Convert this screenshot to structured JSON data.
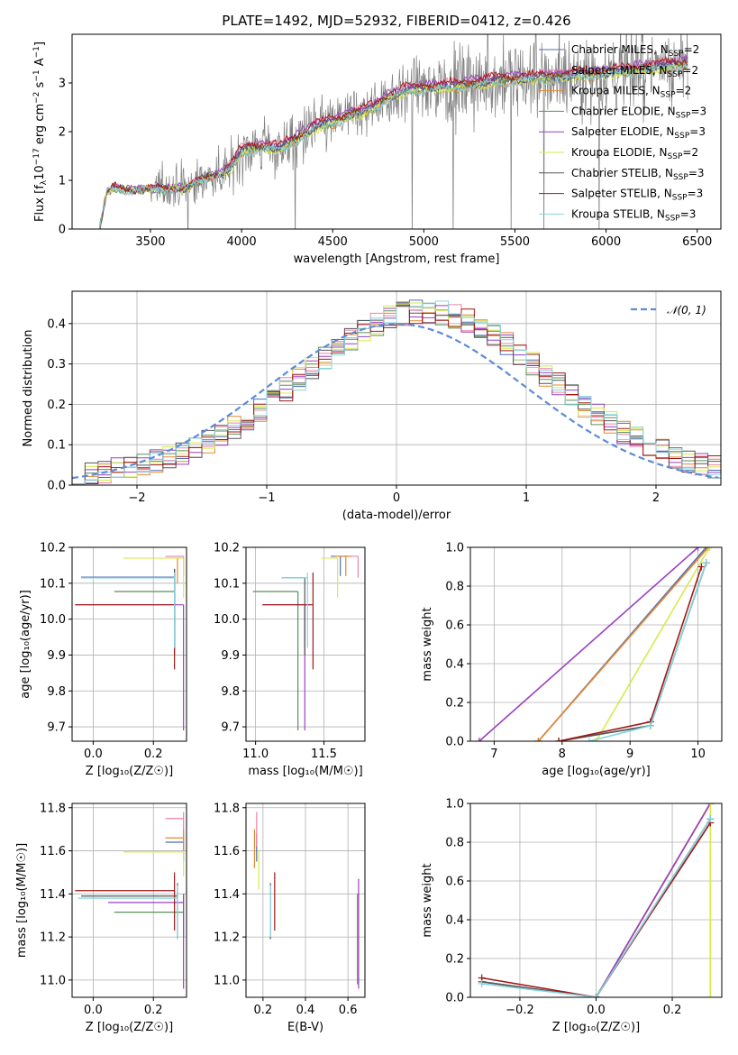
{
  "figure": {
    "title": "PLATE=1492, MJD=52932, FIBERID=0412, z=0.426"
  },
  "models": [
    {
      "name": "Chabrier MILES, N",
      "nssp": "=2",
      "color": "#4f6db3"
    },
    {
      "name": "Salpeter MILES, N",
      "nssp": "=2",
      "color": "#ee82a8"
    },
    {
      "name": "Kroupa MILES, N",
      "nssp": "=2",
      "color": "#e08a2e"
    },
    {
      "name": "Chabrier ELODIE, N",
      "nssp": "=3",
      "color": "#5a8f5a"
    },
    {
      "name": "Salpeter ELODIE, N",
      "nssp": "=3",
      "color": "#9b3fbf"
    },
    {
      "name": "Kroupa ELODIE, N",
      "nssp": "=2",
      "color": "#d7ea4a"
    },
    {
      "name": "Chabrier STELIB, N",
      "nssp": "=3",
      "color": "#555555"
    },
    {
      "name": "Salpeter STELIB, N",
      "nssp": "=3",
      "color": "#a01818"
    },
    {
      "name": "Kroupa STELIB, N",
      "nssp": "=3",
      "color": "#86d4e0"
    }
  ],
  "chart_data": [
    {
      "id": "spectrum",
      "type": "line",
      "xlabel": "wavelength [Angstrom, rest frame]",
      "ylabel_pre": "Flux [f",
      "ylabel_sub": "λ",
      "ylabel_post": "10",
      "ylabel_exp": "−17",
      "ylabel_end": " erg cm",
      "ylabel_exp2": "−2",
      "ylabel_end2": " s",
      "ylabel_exp3": "−1",
      "ylabel_end3": " A",
      "ylabel_exp4": "−1",
      "ylabel_close": "]",
      "xlim": [
        3070,
        6630
      ],
      "ylim": [
        0,
        4.0
      ],
      "xticks": [
        3500,
        4000,
        4500,
        5000,
        5500,
        6000,
        6500
      ],
      "yticks": [
        0,
        1,
        2,
        3
      ],
      "data_color": "#808080",
      "model_continuum": {
        "x": [
          3220,
          3260,
          3300,
          3400,
          3500,
          3700,
          3800,
          3900,
          3950,
          4000,
          4100,
          4200,
          4300,
          4400,
          4500,
          4600,
          4700,
          4800,
          4900,
          5000,
          5200,
          5400,
          5600,
          5800,
          6000,
          6200,
          6450
        ],
        "y": [
          0.0,
          0.75,
          0.85,
          0.8,
          0.82,
          0.85,
          1.05,
          1.15,
          1.3,
          1.6,
          1.7,
          1.65,
          1.85,
          2.1,
          2.2,
          2.35,
          2.45,
          2.7,
          2.85,
          2.9,
          2.95,
          3.05,
          3.1,
          3.15,
          3.2,
          3.3,
          3.4
        ]
      }
    },
    {
      "id": "residuals",
      "type": "step",
      "xlabel": "(data-model)/error",
      "ylabel": "Normed distribution",
      "xlim": [
        -2.5,
        2.5
      ],
      "ylim": [
        0,
        0.48
      ],
      "xticks": [
        -2,
        -1,
        0,
        1,
        2
      ],
      "xtick_labels": [
        "−2",
        "−1",
        "0",
        "1",
        "2"
      ],
      "yticks": [
        0.0,
        0.1,
        0.2,
        0.3,
        0.4
      ],
      "ytick_labels": [
        "0.0",
        "0.1",
        "0.2",
        "0.3",
        "0.4"
      ],
      "legend": "𝒩(0, 1)",
      "normal_color": "#5b8bd9"
    },
    {
      "id": "age_vs_Z",
      "type": "errorbar",
      "xlabel": "Z [log₁₀(Z/Z☉)]",
      "ylabel": "age  [log₁₀(age/yr)]",
      "xlim": [
        -0.07,
        0.31
      ],
      "ylim": [
        9.66,
        10.2
      ],
      "xticks": [
        0.0,
        0.2
      ],
      "xtick_labels": [
        "0.0",
        "0.2"
      ],
      "yticks": [
        9.7,
        9.8,
        9.9,
        10.0,
        10.1,
        10.2
      ],
      "ytick_labels": [
        "9.7",
        "9.8",
        "9.9",
        "10.0",
        "10.1",
        "10.2"
      ],
      "points": [
        {
          "m": 0,
          "x": 0.27,
          "xlo": -0.04,
          "xhi": 0.27,
          "y": 10.117,
          "ylo": 10.117,
          "yhi": 10.117
        },
        {
          "m": 1,
          "x": 0.3,
          "xlo": 0.24,
          "xhi": 0.3,
          "y": 10.175,
          "ylo": 10.12,
          "yhi": 10.175
        },
        {
          "m": 2,
          "x": 0.28,
          "xlo": 0.24,
          "xhi": 0.3,
          "y": 10.17,
          "ylo": 10.1,
          "yhi": 10.17
        },
        {
          "m": 3,
          "x": 0.27,
          "xlo": 0.07,
          "xhi": 0.27,
          "y": 10.077,
          "ylo": 9.9,
          "yhi": 10.14
        },
        {
          "m": 4,
          "x": 0.3,
          "xlo": -0.06,
          "xhi": 0.3,
          "y": 10.04,
          "ylo": 9.69,
          "yhi": 10.04
        },
        {
          "m": 5,
          "x": 0.3,
          "xlo": 0.1,
          "xhi": 0.3,
          "y": 10.17,
          "ylo": 10.06,
          "yhi": 10.17
        },
        {
          "m": 6,
          "x": 0.27,
          "xlo": -0.04,
          "xhi": 0.27,
          "y": 10.115,
          "ylo": 9.92,
          "yhi": 10.14
        },
        {
          "m": 7,
          "x": 0.27,
          "xlo": -0.06,
          "xhi": 0.27,
          "y": 10.04,
          "ylo": 9.86,
          "yhi": 10.13
        },
        {
          "m": 8,
          "x": 0.27,
          "xlo": -0.04,
          "xhi": 0.27,
          "y": 10.115,
          "ylo": 9.92,
          "yhi": 10.13
        }
      ]
    },
    {
      "id": "age_vs_mass",
      "type": "errorbar",
      "xlabel": "mass [log₁₀(M/M☉)]",
      "ylabel": "",
      "xlim": [
        10.93,
        11.8
      ],
      "ylim": [
        9.66,
        10.2
      ],
      "xticks": [
        11.0,
        11.5
      ],
      "xtick_labels": [
        "11.0",
        "11.5"
      ],
      "yticks": [
        9.7,
        9.8,
        9.9,
        10.0,
        10.1,
        10.2
      ],
      "ytick_labels": [
        "9.7",
        "9.8",
        "9.9",
        "10.0",
        "10.1",
        "10.2"
      ],
      "points": [
        {
          "m": 0,
          "x": 11.62,
          "xlo": 11.55,
          "xhi": 11.68,
          "y": 10.175,
          "ylo": 10.12,
          "yhi": 10.175
        },
        {
          "m": 1,
          "x": 11.75,
          "xlo": 11.62,
          "xhi": 11.75,
          "y": 10.175,
          "ylo": 10.115,
          "yhi": 10.175
        },
        {
          "m": 2,
          "x": 11.66,
          "xlo": 11.58,
          "xhi": 11.7,
          "y": 10.175,
          "ylo": 10.12,
          "yhi": 10.175
        },
        {
          "m": 3,
          "x": 11.31,
          "xlo": 10.98,
          "xhi": 11.31,
          "y": 10.077,
          "ylo": 9.69,
          "yhi": 10.077
        },
        {
          "m": 4,
          "x": 11.36,
          "xlo": 11.05,
          "xhi": 11.4,
          "y": 10.04,
          "ylo": 9.69,
          "yhi": 10.04
        },
        {
          "m": 5,
          "x": 11.6,
          "xlo": 11.48,
          "xhi": 11.6,
          "y": 10.17,
          "ylo": 10.06,
          "yhi": 10.17
        },
        {
          "m": 6,
          "x": 11.36,
          "xlo": 11.19,
          "xhi": 11.36,
          "y": 10.115,
          "ylo": 9.9,
          "yhi": 10.115
        },
        {
          "m": 7,
          "x": 11.42,
          "xlo": 11.05,
          "xhi": 11.42,
          "y": 10.04,
          "ylo": 9.86,
          "yhi": 10.13
        },
        {
          "m": 8,
          "x": 11.38,
          "xlo": 11.19,
          "xhi": 11.38,
          "y": 10.115,
          "ylo": 9.92,
          "yhi": 10.13
        }
      ]
    },
    {
      "id": "mw_vs_age",
      "type": "line",
      "xlabel": "age  [log₁₀(age/yr)]",
      "ylabel": "mass weight",
      "xlim": [
        6.65,
        10.35
      ],
      "ylim": [
        0.0,
        1.0
      ],
      "xticks": [
        7,
        8,
        9,
        10
      ],
      "xtick_labels": [
        "7",
        "8",
        "9",
        "10"
      ],
      "yticks": [
        0.0,
        0.2,
        0.4,
        0.6,
        0.8,
        1.0
      ],
      "ytick_labels": [
        "0.0",
        "0.2",
        "0.4",
        "0.6",
        "0.8",
        "1.0"
      ],
      "series": [
        {
          "m": 0,
          "x": [
            7.65,
            10.12
          ],
          "y": [
            0.0,
            1.0
          ]
        },
        {
          "m": 1,
          "x": [
            7.65,
            10.15
          ],
          "y": [
            0.0,
            1.0
          ]
        },
        {
          "m": 2,
          "x": [
            7.65,
            10.15
          ],
          "y": [
            0.0,
            1.0
          ]
        },
        {
          "m": 3,
          "x": [
            7.95,
            9.3,
            10.12
          ],
          "y": [
            0.0,
            0.08,
            0.92
          ]
        },
        {
          "m": 4,
          "x": [
            6.78,
            10.0
          ],
          "y": [
            0.0,
            1.0
          ]
        },
        {
          "m": 5,
          "x": [
            8.5,
            10.17
          ],
          "y": [
            0.0,
            1.0
          ]
        },
        {
          "m": 6,
          "x": [
            7.95,
            9.3,
            10.12
          ],
          "y": [
            0.0,
            0.08,
            0.92
          ]
        },
        {
          "m": 7,
          "x": [
            7.95,
            9.3,
            10.05
          ],
          "y": [
            0.0,
            0.1,
            0.9
          ]
        },
        {
          "m": 8,
          "x": [
            8.4,
            9.3,
            10.12
          ],
          "y": [
            0.0,
            0.08,
            0.92
          ]
        }
      ]
    },
    {
      "id": "mass_vs_Z",
      "type": "errorbar",
      "xlabel": "Z [log₁₀(Z/Z☉)]",
      "ylabel": "mass [log₁₀(M/M☉)]",
      "xlim": [
        -0.07,
        0.31
      ],
      "ylim": [
        10.92,
        11.82
      ],
      "xticks": [
        0.0,
        0.2
      ],
      "xtick_labels": [
        "0.0",
        "0.2"
      ],
      "yticks": [
        11.0,
        11.2,
        11.4,
        11.6,
        11.8
      ],
      "ytick_labels": [
        "11.0",
        "11.2",
        "11.4",
        "11.6",
        "11.8"
      ],
      "points": [
        {
          "m": 0,
          "x": 0.3,
          "xlo": 0.24,
          "xhi": 0.3,
          "y": 11.64,
          "ylo": 11.55,
          "yhi": 11.68
        },
        {
          "m": 1,
          "x": 0.3,
          "xlo": 0.24,
          "xhi": 0.3,
          "y": 11.75,
          "ylo": 11.62,
          "yhi": 11.78
        },
        {
          "m": 2,
          "x": 0.3,
          "xlo": 0.24,
          "xhi": 0.3,
          "y": 11.66,
          "ylo": 11.58,
          "yhi": 11.7
        },
        {
          "m": 3,
          "x": 0.3,
          "xlo": 0.07,
          "xhi": 0.3,
          "y": 11.315,
          "ylo": 11.2,
          "yhi": 11.4
        },
        {
          "m": 4,
          "x": 0.3,
          "xlo": 0.05,
          "xhi": 0.3,
          "y": 11.36,
          "ylo": 10.96,
          "yhi": 11.4
        },
        {
          "m": 5,
          "x": 0.3,
          "xlo": 0.1,
          "xhi": 0.3,
          "y": 11.595,
          "ylo": 11.48,
          "yhi": 11.6
        },
        {
          "m": 6,
          "x": 0.28,
          "xlo": -0.04,
          "xhi": 0.28,
          "y": 11.39,
          "ylo": 11.19,
          "yhi": 11.45
        },
        {
          "m": 7,
          "x": 0.27,
          "xlo": -0.06,
          "xhi": 0.27,
          "y": 11.415,
          "ylo": 11.23,
          "yhi": 11.5
        },
        {
          "m": 8,
          "x": 0.28,
          "xlo": -0.05,
          "xhi": 0.28,
          "y": 11.38,
          "ylo": 11.19,
          "yhi": 11.44
        }
      ]
    },
    {
      "id": "mass_vs_ebv",
      "type": "errorbar",
      "xlabel": "E(B-V)",
      "ylabel": "",
      "xlim": [
        0.12,
        0.68
      ],
      "ylim": [
        10.92,
        11.82
      ],
      "xticks": [
        0.2,
        0.4,
        0.6
      ],
      "xtick_labels": [
        "0.2",
        "0.4",
        "0.6"
      ],
      "yticks": [
        11.0,
        11.2,
        11.4,
        11.6,
        11.8
      ],
      "ytick_labels": [
        "11.0",
        "11.2",
        "11.4",
        "11.6",
        "11.8"
      ],
      "points": [
        {
          "m": 0,
          "x": 0.17,
          "xlo": 0.17,
          "xhi": 0.17,
          "y": 11.64,
          "ylo": 11.55,
          "yhi": 11.68
        },
        {
          "m": 1,
          "x": 0.17,
          "xlo": 0.17,
          "xhi": 0.17,
          "y": 11.75,
          "ylo": 11.62,
          "yhi": 11.78
        },
        {
          "m": 2,
          "x": 0.16,
          "xlo": 0.16,
          "xhi": 0.16,
          "y": 11.66,
          "ylo": 11.52,
          "yhi": 11.7
        },
        {
          "m": 3,
          "x": 0.645,
          "xlo": 0.645,
          "xhi": 0.645,
          "y": 11.315,
          "ylo": 10.98,
          "yhi": 11.4
        },
        {
          "m": 4,
          "x": 0.65,
          "xlo": 0.65,
          "xhi": 0.65,
          "y": 11.36,
          "ylo": 10.96,
          "yhi": 11.47
        },
        {
          "m": 5,
          "x": 0.18,
          "xlo": 0.18,
          "xhi": 0.18,
          "y": 11.595,
          "ylo": 11.42,
          "yhi": 11.6
        },
        {
          "m": 6,
          "x": 0.235,
          "xlo": 0.235,
          "xhi": 0.235,
          "y": 11.39,
          "ylo": 11.19,
          "yhi": 11.45
        },
        {
          "m": 7,
          "x": 0.255,
          "xlo": 0.255,
          "xhi": 0.255,
          "y": 11.415,
          "ylo": 11.23,
          "yhi": 11.5
        },
        {
          "m": 8,
          "x": 0.235,
          "xlo": 0.235,
          "xhi": 0.235,
          "y": 11.38,
          "ylo": 11.2,
          "yhi": 11.44
        }
      ]
    },
    {
      "id": "mw_vs_Z",
      "type": "line",
      "xlabel": "Z [log₁₀(Z/Z☉)]",
      "ylabel": "mass weight",
      "xlim": [
        -0.33,
        0.33
      ],
      "ylim": [
        0.0,
        1.0
      ],
      "xticks": [
        -0.2,
        0.0,
        0.2
      ],
      "xtick_labels": [
        "−0.2",
        "0.0",
        "0.2"
      ],
      "yticks": [
        0.0,
        0.2,
        0.4,
        0.6,
        0.8,
        1.0
      ],
      "ytick_labels": [
        "0.0",
        "0.2",
        "0.4",
        "0.6",
        "0.8",
        "1.0"
      ],
      "series": [
        {
          "m": 0,
          "x": [
            0.0,
            0.3
          ],
          "y": [
            0.0,
            1.0
          ]
        },
        {
          "m": 1,
          "x": [
            0.0,
            0.3
          ],
          "y": [
            0.0,
            1.0
          ]
        },
        {
          "m": 2,
          "x": [
            0.0,
            0.3
          ],
          "y": [
            0.0,
            1.0
          ]
        },
        {
          "m": 3,
          "x": [
            -0.3,
            0.0,
            0.3
          ],
          "y": [
            0.08,
            0.0,
            0.92
          ]
        },
        {
          "m": 4,
          "x": [
            0.0,
            0.3
          ],
          "y": [
            0.0,
            1.0
          ]
        },
        {
          "m": 5,
          "x": [
            0.3,
            0.3
          ],
          "y": [
            0.0,
            1.0
          ]
        },
        {
          "m": 6,
          "x": [
            -0.3,
            0.0,
            0.3
          ],
          "y": [
            0.08,
            0.0,
            0.92
          ]
        },
        {
          "m": 7,
          "x": [
            -0.3,
            0.0,
            0.3
          ],
          "y": [
            0.1,
            0.0,
            0.9
          ]
        },
        {
          "m": 8,
          "x": [
            -0.3,
            0.0,
            0.3
          ],
          "y": [
            0.07,
            0.0,
            0.92
          ]
        }
      ]
    }
  ]
}
